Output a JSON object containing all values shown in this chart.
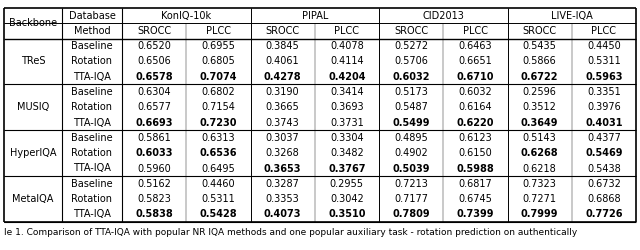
{
  "caption": "le 1. Comparison of TTA-IQA with popular NR IQA methods and one popular auxiliary task - rotation prediction on authentically",
  "backbones": [
    "TReS",
    "MUSIQ",
    "HyperIQA",
    "MetalQA"
  ],
  "methods": [
    "Baseline",
    "Rotation",
    "TTA-IQA"
  ],
  "db_headers": [
    "KonIQ-10k",
    "PIPAL",
    "CID2013",
    "LIVE-IQA"
  ],
  "data": {
    "TReS": {
      "Baseline": [
        "0.6520",
        "0.6955",
        "0.3845",
        "0.4078",
        "0.5272",
        "0.6463",
        "0.5435",
        "0.4450"
      ],
      "Rotation": [
        "0.6506",
        "0.6805",
        "0.4061",
        "0.4114",
        "0.5706",
        "0.6651",
        "0.5866",
        "0.5311"
      ],
      "TTA-IQA": [
        "0.6578",
        "0.7074",
        "0.4278",
        "0.4204",
        "0.6032",
        "0.6710",
        "0.6722",
        "0.5963"
      ]
    },
    "MUSIQ": {
      "Baseline": [
        "0.6304",
        "0.6802",
        "0.3190",
        "0.3414",
        "0.5173",
        "0.6032",
        "0.2596",
        "0.3351"
      ],
      "Rotation": [
        "0.6577",
        "0.7154",
        "0.3665",
        "0.3693",
        "0.5487",
        "0.6164",
        "0.3512",
        "0.3976"
      ],
      "TTA-IQA": [
        "0.6693",
        "0.7230",
        "0.3743",
        "0.3731",
        "0.5499",
        "0.6220",
        "0.3649",
        "0.4031"
      ]
    },
    "HyperIQA": {
      "Baseline": [
        "0.5861",
        "0.6313",
        "0.3037",
        "0.3304",
        "0.4895",
        "0.6123",
        "0.5143",
        "0.4377"
      ],
      "Rotation": [
        "0.6033",
        "0.6536",
        "0.3268",
        "0.3482",
        "0.4902",
        "0.6150",
        "0.6268",
        "0.5469"
      ],
      "TTA-IQA": [
        "0.5960",
        "0.6495",
        "0.3653",
        "0.3767",
        "0.5039",
        "0.5988",
        "0.6218",
        "0.5438"
      ]
    },
    "MetalQA": {
      "Baseline": [
        "0.5162",
        "0.4460",
        "0.3287",
        "0.2955",
        "0.7213",
        "0.6817",
        "0.7323",
        "0.6732"
      ],
      "Rotation": [
        "0.5823",
        "0.5311",
        "0.3353",
        "0.3042",
        "0.7177",
        "0.6745",
        "0.7271",
        "0.6868"
      ],
      "TTA-IQA": [
        "0.5838",
        "0.5428",
        "0.4073",
        "0.3510",
        "0.7809",
        "0.7399",
        "0.7999",
        "0.7726"
      ]
    }
  },
  "bold": {
    "TReS": {
      "Baseline": [],
      "Rotation": [],
      "TTA-IQA": [
        0,
        1,
        2,
        3,
        4,
        5,
        6,
        7
      ]
    },
    "MUSIQ": {
      "Baseline": [],
      "Rotation": [],
      "TTA-IQA": [
        0,
        1,
        4,
        5,
        6,
        7
      ]
    },
    "HyperIQA": {
      "Baseline": [],
      "Rotation": [
        0,
        1,
        6,
        7
      ],
      "TTA-IQA": [
        2,
        3,
        4,
        5
      ]
    },
    "MetalQA": {
      "Baseline": [],
      "Rotation": [],
      "TTA-IQA": [
        0,
        1,
        2,
        3,
        4,
        5,
        6,
        7
      ]
    }
  },
  "bg_color": "#ffffff",
  "line_color": "#000000",
  "font_size": 7.0,
  "caption_font_size": 6.5
}
